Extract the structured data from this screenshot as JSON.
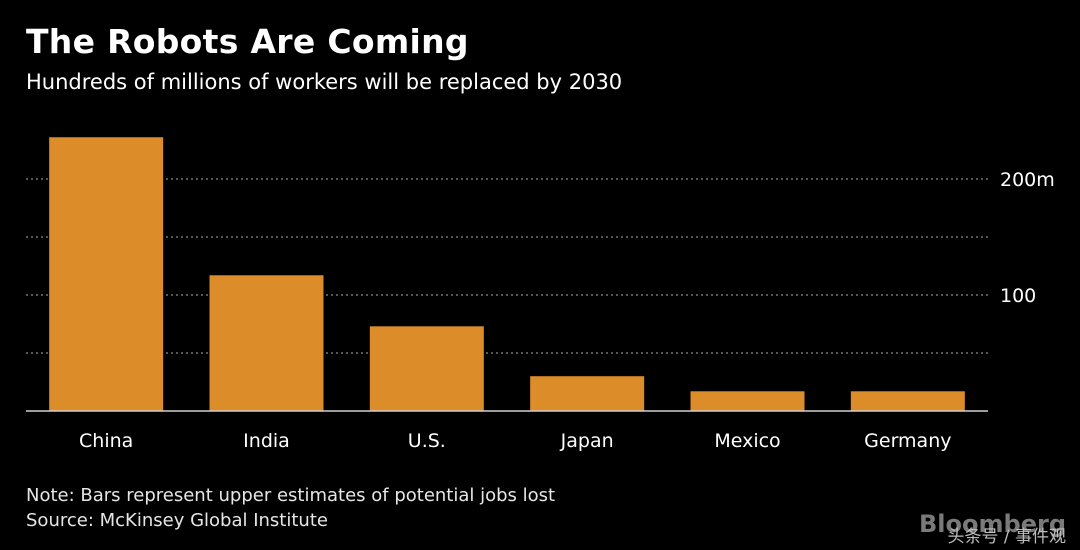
{
  "title": "The Robots Are Coming",
  "subtitle": "Hundreds of millions of workers will be replaced by 2030",
  "note": "Note: Bars represent upper estimates of potential jobs lost",
  "source": "Source: McKinsey Global Institute",
  "watermark": {
    "brand": "Bloomberg",
    "overlay": "头条号 / 事件观"
  },
  "colors": {
    "background": "#000000",
    "bar": "#dc8c28",
    "grid": "#8a8a8a",
    "text": "#ffffff"
  },
  "chart_data": {
    "type": "bar",
    "title": "The Robots Are Coming",
    "subtitle": "Hundreds of millions of workers will be replaced by 2030",
    "categories": [
      "China",
      "India",
      "U.S.",
      "Japan",
      "Mexico",
      "Germany"
    ],
    "values": [
      236,
      117,
      73,
      30,
      17,
      17
    ],
    "unit": "millions",
    "ylim": [
      0,
      240
    ],
    "yticks": [
      {
        "value": 200,
        "label": "200m"
      },
      {
        "value": 100,
        "label": "100"
      }
    ],
    "gridlines": [
      50,
      100,
      150,
      200
    ],
    "grid": true,
    "xlabel": "",
    "ylabel": "",
    "y_axis_position": "right"
  }
}
